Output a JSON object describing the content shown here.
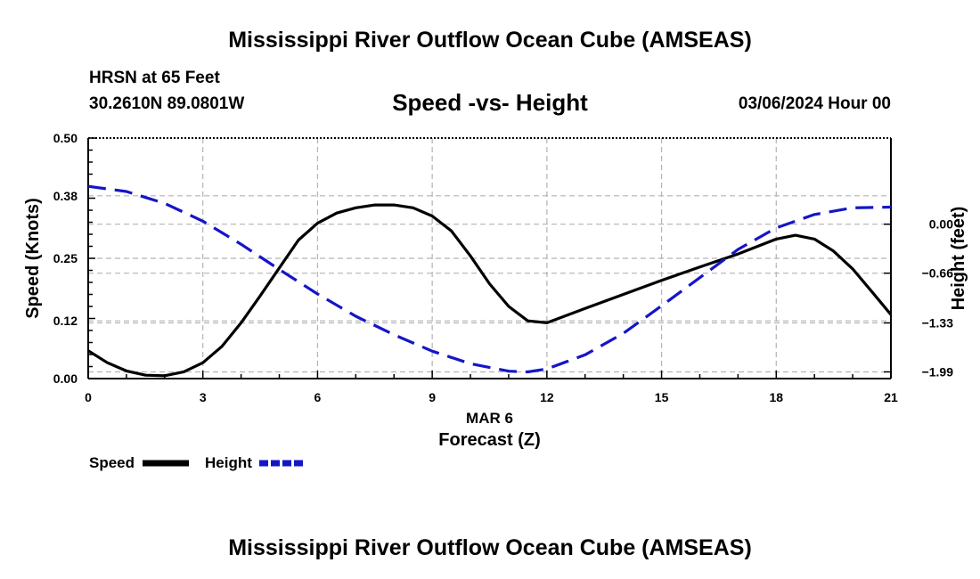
{
  "page": {
    "title": "Mississippi River Outflow Ocean Cube (AMSEAS)",
    "footer_title": "Mississippi River Outflow Ocean Cube (AMSEAS)",
    "station": "HRSN at 65 Feet",
    "location": "30.2610N  89.0801W",
    "datetime": "03/06/2024 Hour 00"
  },
  "colors": {
    "speed": "#000000",
    "height": "#1515c8",
    "grid": "#b4b4b4"
  },
  "chart_data": {
    "type": "line",
    "title": "Speed -vs- Height",
    "xlabel": "Forecast (Z)",
    "date_label": "MAR 6",
    "xlim": [
      0,
      21
    ],
    "x_ticks": [
      0,
      3,
      6,
      9,
      12,
      15,
      18,
      21
    ],
    "y_left": {
      "label": "Speed (Knots)",
      "lim": [
        0,
        0.5
      ],
      "ticks": [
        0.0,
        0.12,
        0.25,
        0.38,
        0.5
      ],
      "tick_labels": [
        "0.00",
        "0.12",
        "0.25",
        "0.38",
        "0.50"
      ]
    },
    "y_right": {
      "label": "Height (feet)",
      "lim": [
        -2.08,
        1.16
      ],
      "ticks": [
        0.0,
        -0.66,
        -1.33,
        -1.99
      ],
      "tick_labels": [
        "0.00",
        "−0.66",
        "−1.33",
        "−1.99"
      ]
    },
    "series": [
      {
        "name": "Speed",
        "axis": "left",
        "style": "solid",
        "x": [
          0,
          0.5,
          1,
          1.5,
          2,
          2.5,
          3,
          3.5,
          4,
          4.5,
          5,
          5.5,
          6,
          6.5,
          7,
          7.5,
          8,
          8.5,
          9,
          9.5,
          10,
          10.5,
          11,
          11.5,
          12,
          13,
          14,
          15,
          16,
          17,
          18,
          18.5,
          19,
          19.5,
          20,
          20.5,
          21
        ],
        "values": [
          0.058,
          0.033,
          0.016,
          0.007,
          0.006,
          0.014,
          0.033,
          0.067,
          0.116,
          0.172,
          0.23,
          0.288,
          0.323,
          0.344,
          0.355,
          0.361,
          0.361,
          0.355,
          0.338,
          0.307,
          0.255,
          0.197,
          0.15,
          0.12,
          0.116,
          0.146,
          0.175,
          0.204,
          0.232,
          0.259,
          0.29,
          0.298,
          0.29,
          0.265,
          0.228,
          0.181,
          0.133
        ]
      },
      {
        "name": "Height",
        "axis": "right",
        "style": "dashed",
        "x": [
          0,
          1,
          2,
          3,
          4,
          5,
          6,
          7,
          8,
          9,
          10,
          11,
          11.5,
          12,
          13,
          14,
          15,
          16,
          17,
          18,
          19,
          20,
          21
        ],
        "values": [
          0.51,
          0.44,
          0.28,
          0.04,
          -0.27,
          -0.61,
          -0.94,
          -1.24,
          -1.49,
          -1.71,
          -1.88,
          -1.98,
          -1.99,
          -1.95,
          -1.76,
          -1.47,
          -1.1,
          -0.72,
          -0.34,
          -0.05,
          0.13,
          0.22,
          0.23
        ]
      }
    ],
    "legend": {
      "placement": "bottom-left",
      "entries": [
        "Speed",
        "Height"
      ]
    }
  }
}
